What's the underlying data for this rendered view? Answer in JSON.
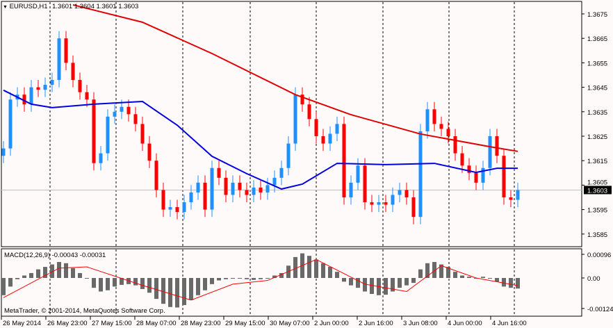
{
  "header": {
    "symbol": "EURUSD,H1",
    "ohlc": "1.3601 1.3604 1.3601 1.3603"
  },
  "macd_label": "MACD(12,26,9) -0.00043 -0.00031",
  "copyright": "MetaTrader, © 2001-2014, MetaQuotes Software Corp.",
  "colors": {
    "bull": "#1e90ff",
    "bear": "#ff0000",
    "ma_slow": "#e00000",
    "ma_fast": "#0000e0",
    "hist": "#696969",
    "signal": "#ff0000",
    "background": "#fffafa"
  },
  "chart_data": {
    "type": "candlestick",
    "price_ticks": [
      "1.3675",
      "1.3665",
      "1.3655",
      "1.3645",
      "1.3635",
      "1.3625",
      "1.3615",
      "1.3605",
      "1.3595",
      "1.3585"
    ],
    "current_price": "1.3603",
    "time_labels": [
      "26 May 2014",
      "26 May 23:00",
      "27 May 15:00",
      "28 May 07:00",
      "28 May 23:00",
      "29 May 15:00",
      "30 May 07:00",
      "2 Jun 00:00",
      "2 Jun 16:00",
      "3 Jun 08:00",
      "4 Jun 00:00",
      "4 Jun 16:00"
    ],
    "closes": [
      1.362,
      1.364,
      1.3642,
      1.3638,
      1.3645,
      1.3644,
      1.3646,
      1.3648,
      1.3665,
      1.3655,
      1.3648,
      1.3643,
      1.364,
      1.3614,
      1.3618,
      1.3633,
      1.3635,
      1.3637,
      1.3634,
      1.363,
      1.3622,
      1.3615,
      1.3603,
      1.3595,
      1.3596,
      1.3594,
      1.3598,
      1.3602,
      1.3606,
      1.3595,
      1.3612,
      1.3608,
      1.3601,
      1.3606,
      1.3603,
      1.3601,
      1.3604,
      1.3602,
      1.3605,
      1.3608,
      1.3612,
      1.3622,
      1.3642,
      1.3638,
      1.3632,
      1.3625,
      1.3622,
      1.3626,
      1.363,
      1.36,
      1.3606,
      1.3613,
      1.3598,
      1.3597,
      1.3598,
      1.3597,
      1.3601,
      1.3603,
      1.36,
      1.3592,
      1.3627,
      1.3636,
      1.363,
      1.3628,
      1.3625,
      1.3618,
      1.3613,
      1.361,
      1.3606,
      1.3612,
      1.3625,
      1.3617,
      1.36,
      1.3599,
      1.3603
    ],
    "ma_slow": [
      [
        10,
        1.36787
      ],
      [
        20,
        1.36716
      ],
      [
        30,
        1.36588
      ],
      [
        42,
        1.3642
      ],
      [
        50,
        1.36338
      ],
      [
        60,
        1.36259
      ],
      [
        70,
        1.36207
      ],
      [
        74,
        1.36188
      ]
    ],
    "ma_fast": [
      [
        0,
        1.36438
      ],
      [
        4,
        1.36381
      ],
      [
        7,
        1.36367
      ],
      [
        13,
        1.36381
      ],
      [
        20,
        1.36392
      ],
      [
        25,
        1.36295
      ],
      [
        30,
        1.36168
      ],
      [
        35,
        1.36097
      ],
      [
        40,
        1.36034
      ],
      [
        43,
        1.36054
      ],
      [
        48,
        1.36139
      ],
      [
        55,
        1.36134
      ],
      [
        62,
        1.36139
      ],
      [
        68,
        1.36102
      ],
      [
        71,
        1.36119
      ],
      [
        74,
        1.36119
      ]
    ],
    "macd_ticks": [
      "0.00096",
      "0.00",
      "-0.00124"
    ],
    "macd_hist": [
      -70,
      -35,
      -5,
      10,
      20,
      35,
      45,
      55,
      65,
      60,
      40,
      20,
      0,
      -40,
      -55,
      -50,
      -35,
      -28,
      -25,
      -30,
      -45,
      -60,
      -85,
      -105,
      -118,
      -120,
      -110,
      -90,
      -70,
      -50,
      -25,
      -10,
      -5,
      -3,
      -2,
      -5,
      -8,
      -5,
      0,
      10,
      20,
      50,
      85,
      100,
      90,
      75,
      60,
      45,
      25,
      -15,
      -30,
      -40,
      -55,
      -65,
      -70,
      -68,
      -55,
      -40,
      -30,
      -20,
      35,
      60,
      65,
      55,
      45,
      25,
      10,
      5,
      0,
      5,
      0,
      -15,
      -35,
      -40,
      -43
    ],
    "macd_unit": 1e-05,
    "macd_signal": [
      [
        0,
        -80
      ],
      [
        8,
        40
      ],
      [
        12,
        45
      ],
      [
        20,
        -30
      ],
      [
        27,
        -90
      ],
      [
        33,
        -25
      ],
      [
        38,
        -10
      ],
      [
        45,
        75
      ],
      [
        52,
        -25
      ],
      [
        58,
        -55
      ],
      [
        63,
        50
      ],
      [
        68,
        0
      ],
      [
        74,
        -31
      ]
    ]
  }
}
